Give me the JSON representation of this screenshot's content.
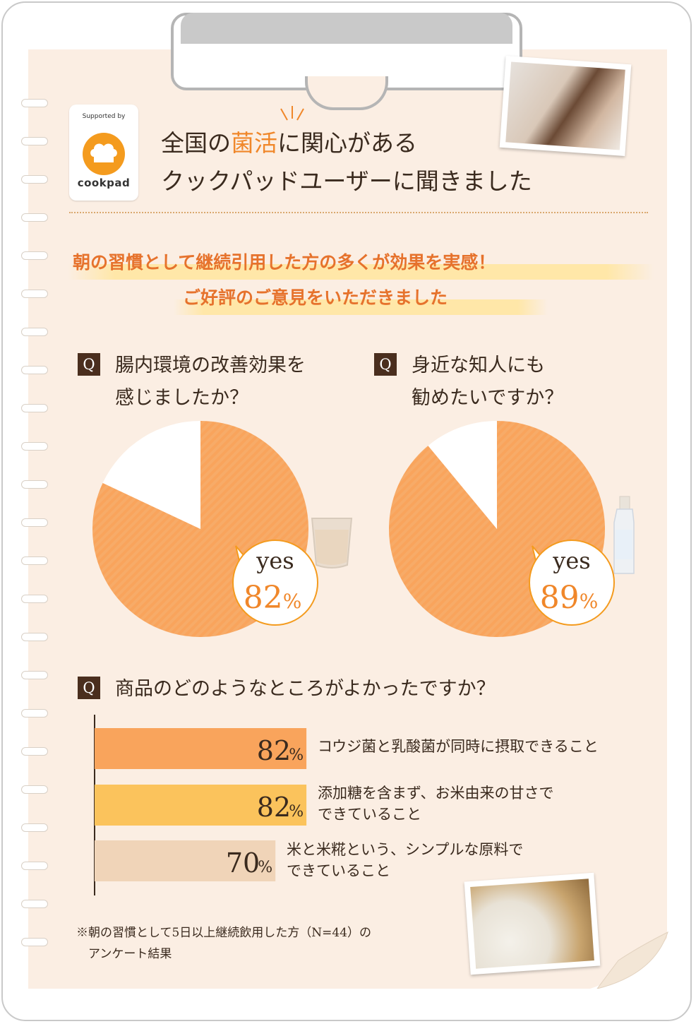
{
  "logo": {
    "supported_by": "Supported by",
    "brand": "cookpad",
    "accent": "#f49b1e"
  },
  "header": {
    "title_line1_a": "全国の",
    "title_line1_b": "菌活",
    "title_line1_c": "に関心がある",
    "title_line2": "クックパッドユーザーに聞きました"
  },
  "subheading": {
    "line1": "朝の習慣として継続引用した方の多くが効果を実感！",
    "line2": "ご好評のご意見をいただきました"
  },
  "chart_data": [
    {
      "type": "pie",
      "question_mark": "Q",
      "question_line1": "腸内環境の改善効果を",
      "question_line2": "感じましたか？",
      "slices": [
        {
          "name": "yes",
          "value": 82
        },
        {
          "value": 18
        }
      ],
      "callout_label": "yes",
      "callout_value": "82",
      "callout_unit": "%"
    },
    {
      "type": "pie",
      "question_mark": "Q",
      "question_line1": "身近な知人にも",
      "question_line2": "勧めたいですか？",
      "slices": [
        {
          "name": "yes",
          "value": 89
        },
        {
          "value": 11
        }
      ],
      "callout_label": "yes",
      "callout_value": "89",
      "callout_unit": "%"
    },
    {
      "type": "bar",
      "orientation": "horizontal",
      "question_mark": "Q",
      "question": "商品のどのようなところがよかったですか？",
      "unit": "%",
      "bars": [
        {
          "value": 82,
          "color": "#f9a45c",
          "label_line1": "コウジ菌と乳酸菌が同時に摂取できること",
          "label_line2": ""
        },
        {
          "value": 82,
          "color": "#fbc35c",
          "label_line1": "添加糖を含まず、お米由来の甘さで",
          "label_line2": "できていること"
        },
        {
          "value": 70,
          "color": "#f0d4b8",
          "label_line1": "米と米糀という、シンプルな原料で",
          "label_line2": "できていること"
        }
      ]
    }
  ],
  "footnote": {
    "line1": "※朝の習慣として5日以上継続飲用した方（N=44）の",
    "line2": "　アンケート結果"
  },
  "colors": {
    "pie_fill": "#f9a45c",
    "pie_rest": "#ffffff",
    "callout_border": "#f49b1e",
    "bar_axis": "#3a2a1e"
  }
}
